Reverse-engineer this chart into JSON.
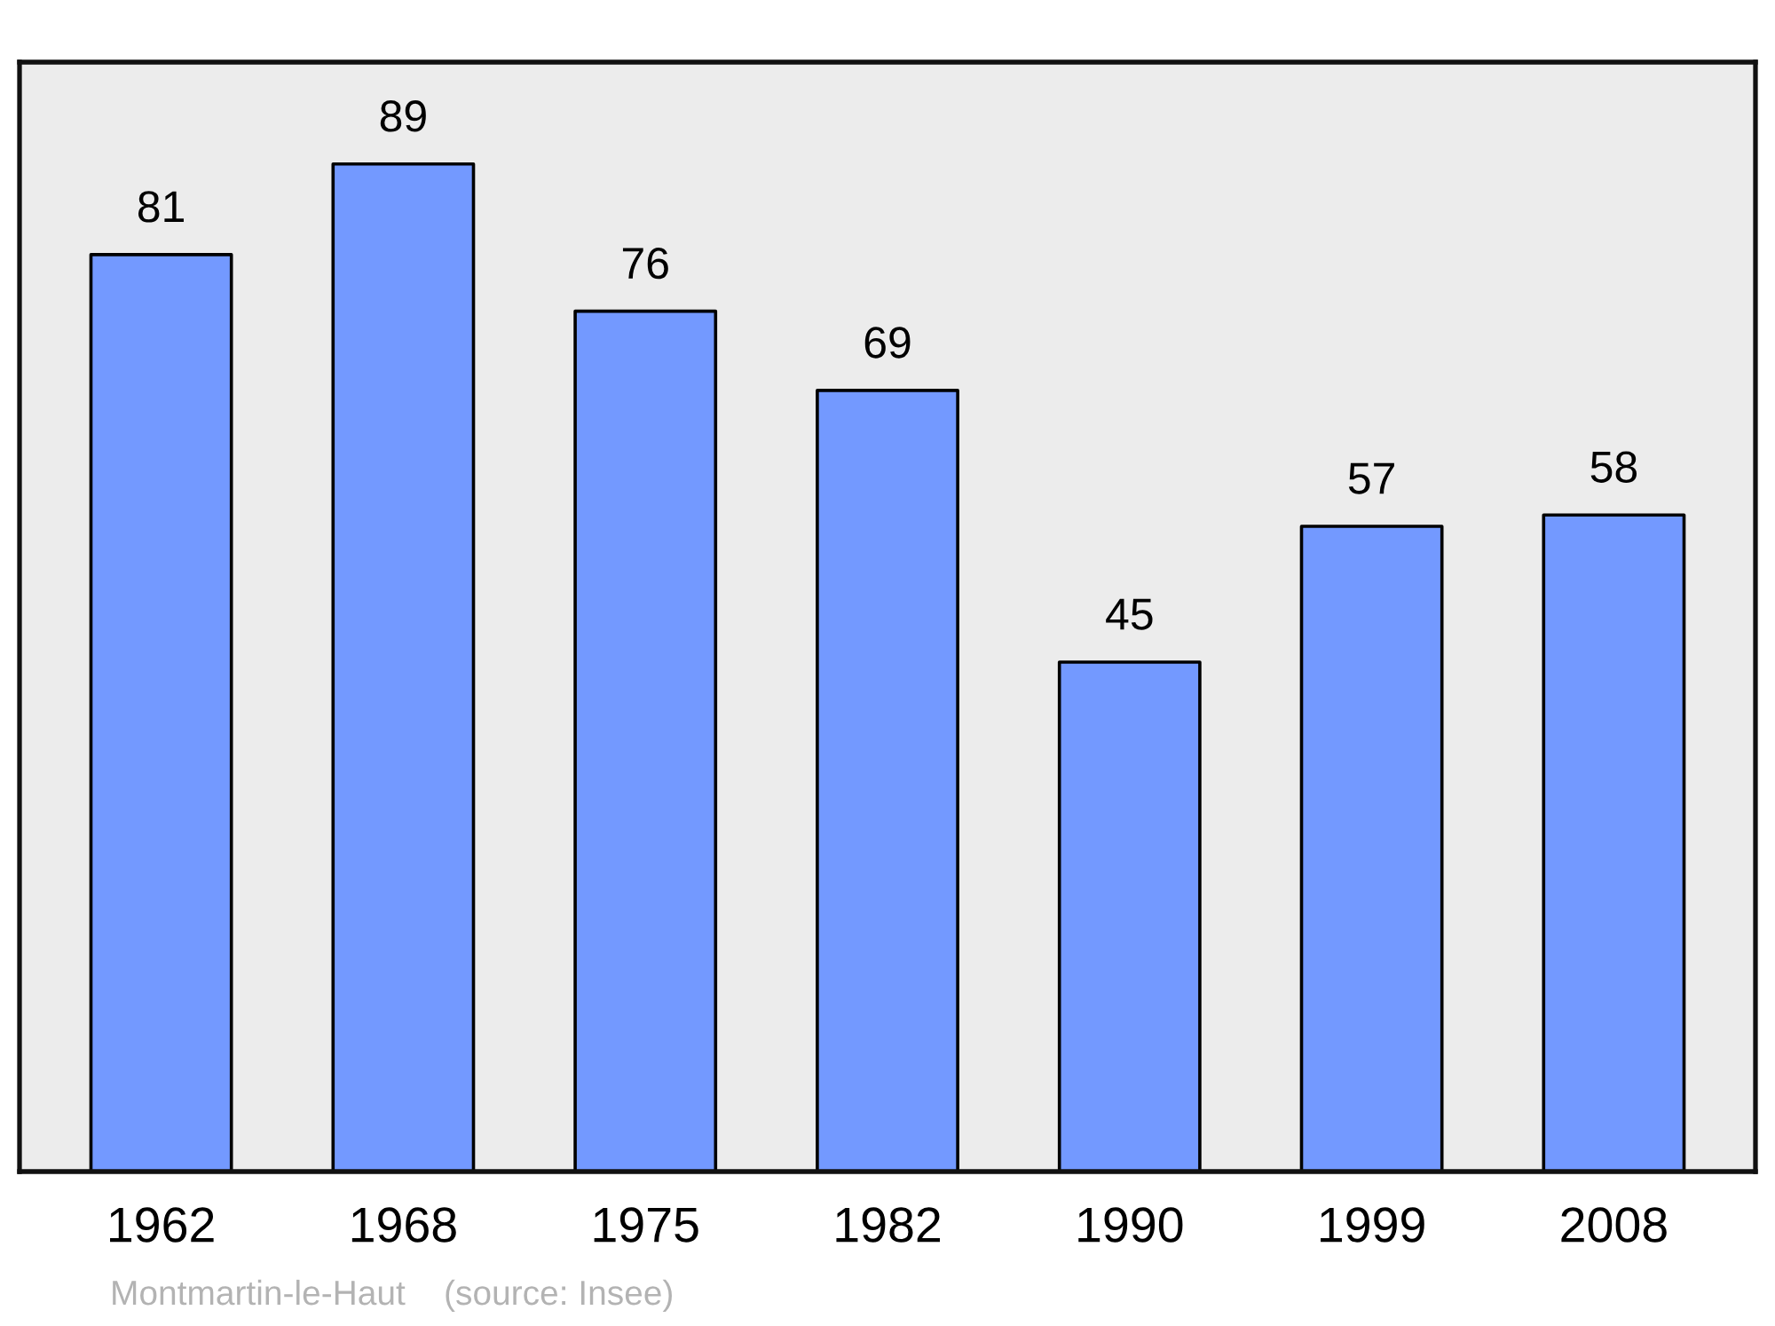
{
  "chart_data": {
    "type": "bar",
    "categories": [
      "1962",
      "1968",
      "1975",
      "1982",
      "1990",
      "1999",
      "2008"
    ],
    "values": [
      81,
      89,
      76,
      69,
      45,
      57,
      58
    ],
    "color": "#7399ff",
    "ylim": [
      0,
      98
    ],
    "data_labels": true,
    "tick_labels": "x",
    "annotations": [
      "Montmartin-le-Haut    (source: Insee)"
    ]
  }
}
